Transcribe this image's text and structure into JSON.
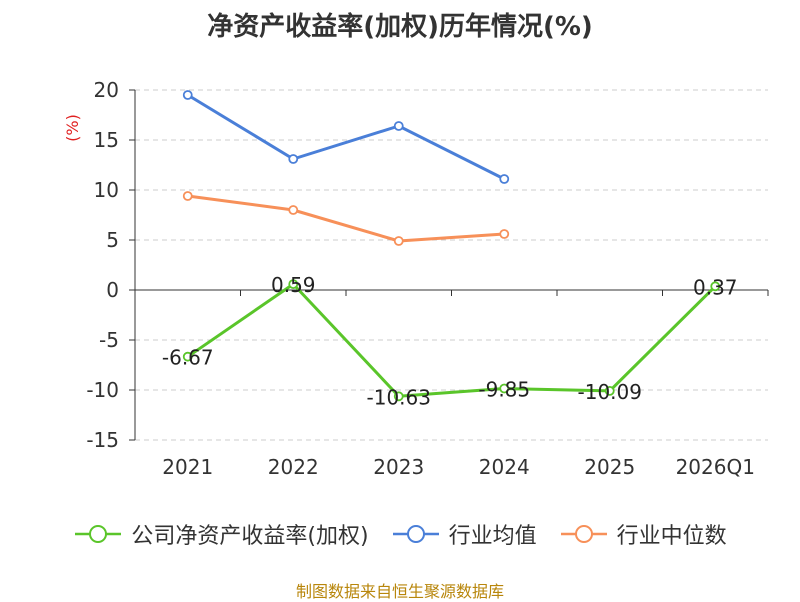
{
  "chart_data": {
    "type": "line",
    "title": "净资产收益率(加权)历年情况(%)",
    "ylabel": "(%)",
    "xlabel": "",
    "categories": [
      "2021",
      "2022",
      "2023",
      "2024",
      "2025",
      "2026Q1"
    ],
    "ylim": [
      -15,
      20
    ],
    "yticks": [
      -15,
      -10,
      -5,
      0,
      5,
      10,
      15,
      20
    ],
    "grid": true,
    "legend_position": "bottom",
    "series": [
      {
        "name": "公司净资产收益率(加权)",
        "color": "#5ac52a",
        "values": [
          -6.67,
          0.59,
          -10.63,
          -9.85,
          -10.09,
          0.37
        ],
        "labels": [
          "-6.67",
          "0.59",
          "-10.63",
          "-9.85",
          "-10.09",
          "0.37"
        ]
      },
      {
        "name": "行业均值",
        "color": "#4a7fd8",
        "values": [
          19.5,
          13.1,
          16.4,
          11.1,
          null,
          null
        ]
      },
      {
        "name": "行业中位数",
        "color": "#f79059",
        "values": [
          9.4,
          8.0,
          4.9,
          5.6,
          null,
          null
        ]
      }
    ]
  },
  "source": "制图数据来自恒生聚源数据库"
}
